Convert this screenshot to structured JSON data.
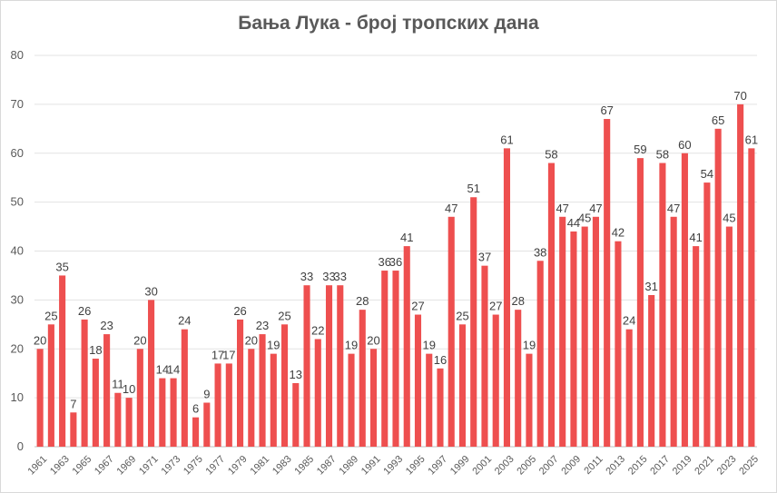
{
  "chart_data": {
    "type": "bar",
    "title": "Бања Лука - број тропских дана",
    "xlabel": "",
    "ylabel": "",
    "ylim": [
      0,
      80
    ],
    "yticks": [
      0,
      10,
      20,
      30,
      40,
      50,
      60,
      70,
      80
    ],
    "grid": true,
    "legend": "none",
    "bar_color": "#ee4f4f",
    "categories": [
      "1961",
      "1962",
      "1963",
      "1964",
      "1965",
      "1966",
      "1967",
      "1968",
      "1969",
      "1970",
      "1971",
      "1972",
      "1973",
      "1974",
      "1975",
      "1976",
      "1977",
      "1978",
      "1979",
      "1980",
      "1981",
      "1982",
      "1983",
      "1984",
      "1985",
      "1986",
      "1987",
      "1988",
      "1989",
      "1990",
      "1991",
      "1992",
      "1993",
      "1994",
      "1995",
      "1996",
      "1997",
      "1998",
      "1999",
      "2000",
      "2001",
      "2002",
      "2003",
      "2004",
      "2005",
      "2006",
      "2007",
      "2008",
      "2009",
      "2010",
      "2011",
      "2012",
      "2013",
      "2014",
      "2015",
      "2016",
      "2017",
      "2018",
      "2019",
      "2020",
      "2021",
      "2022",
      "2023",
      "2024",
      "2025"
    ],
    "x_tick_labels": [
      "1961",
      "1963",
      "1965",
      "1967",
      "1969",
      "1971",
      "1973",
      "1975",
      "1977",
      "1979",
      "1981",
      "1983",
      "1985",
      "1987",
      "1989",
      "1991",
      "1993",
      "1995",
      "1997",
      "1999",
      "2001",
      "2003",
      "2005",
      "2007",
      "2009",
      "2011",
      "2013",
      "2015",
      "2017",
      "2019",
      "2021",
      "2023",
      "2025"
    ],
    "values": [
      20,
      25,
      35,
      7,
      26,
      18,
      23,
      11,
      10,
      20,
      30,
      14,
      14,
      24,
      6,
      9,
      17,
      17,
      26,
      20,
      23,
      19,
      25,
      13,
      33,
      22,
      33,
      33,
      19,
      28,
      20,
      36,
      36,
      41,
      27,
      19,
      16,
      47,
      25,
      51,
      37,
      27,
      61,
      28,
      19,
      38,
      58,
      47,
      44,
      45,
      47,
      67,
      42,
      24,
      59,
      31,
      58,
      47,
      60,
      41,
      54,
      65,
      45,
      70,
      61
    ]
  }
}
